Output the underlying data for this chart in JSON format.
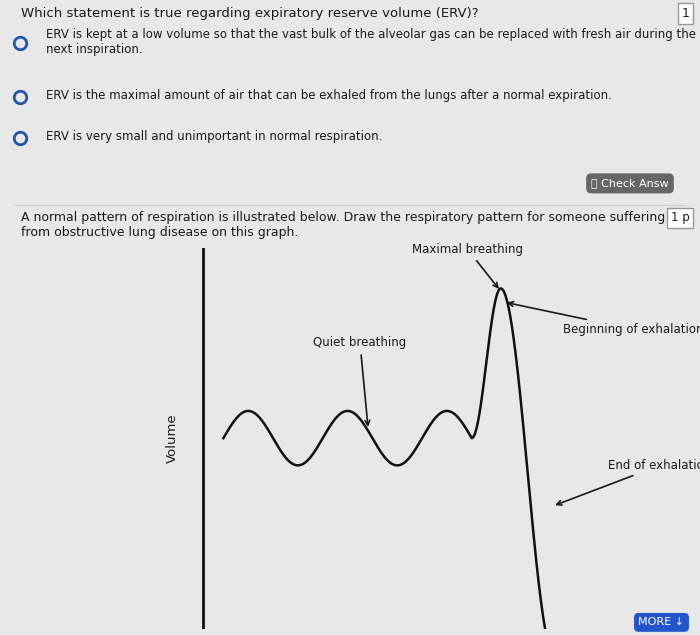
{
  "bg_color": "#e8e8e8",
  "white_area_color": "#f0f0f0",
  "text_color": "#1a1a1a",
  "title_question": "Which statement is true regarding expiratory reserve volume (ERV)?",
  "options": [
    "ERV is kept at a low volume so that the vast bulk of the alveolar gas can be replaced with fresh air during the\nnext inspiration.",
    "ERV is the maximal amount of air that can be exhaled from the lungs after a normal expiration.",
    "ERV is very small and unimportant in normal respiration."
  ],
  "question2_line1": "A normal pattern of respiration is illustrated below. Draw the respiratory pattern for someone suffering",
  "question2_line2": "from obstructive lung disease on this graph.",
  "ylabel": "Volume",
  "annotation_quiet": "Quiet breathing",
  "annotation_maximal": "Maximal breathing",
  "annotation_begin_exh": "Beginning of exhalation",
  "annotation_end_exh": "End of exhalation",
  "check_answer_text": "ὄd Check Answ",
  "badge_text": "1",
  "badge2_text": "1 p",
  "more_text": "MORE ↓",
  "line_color": "#111111",
  "axis_color": "#111111"
}
